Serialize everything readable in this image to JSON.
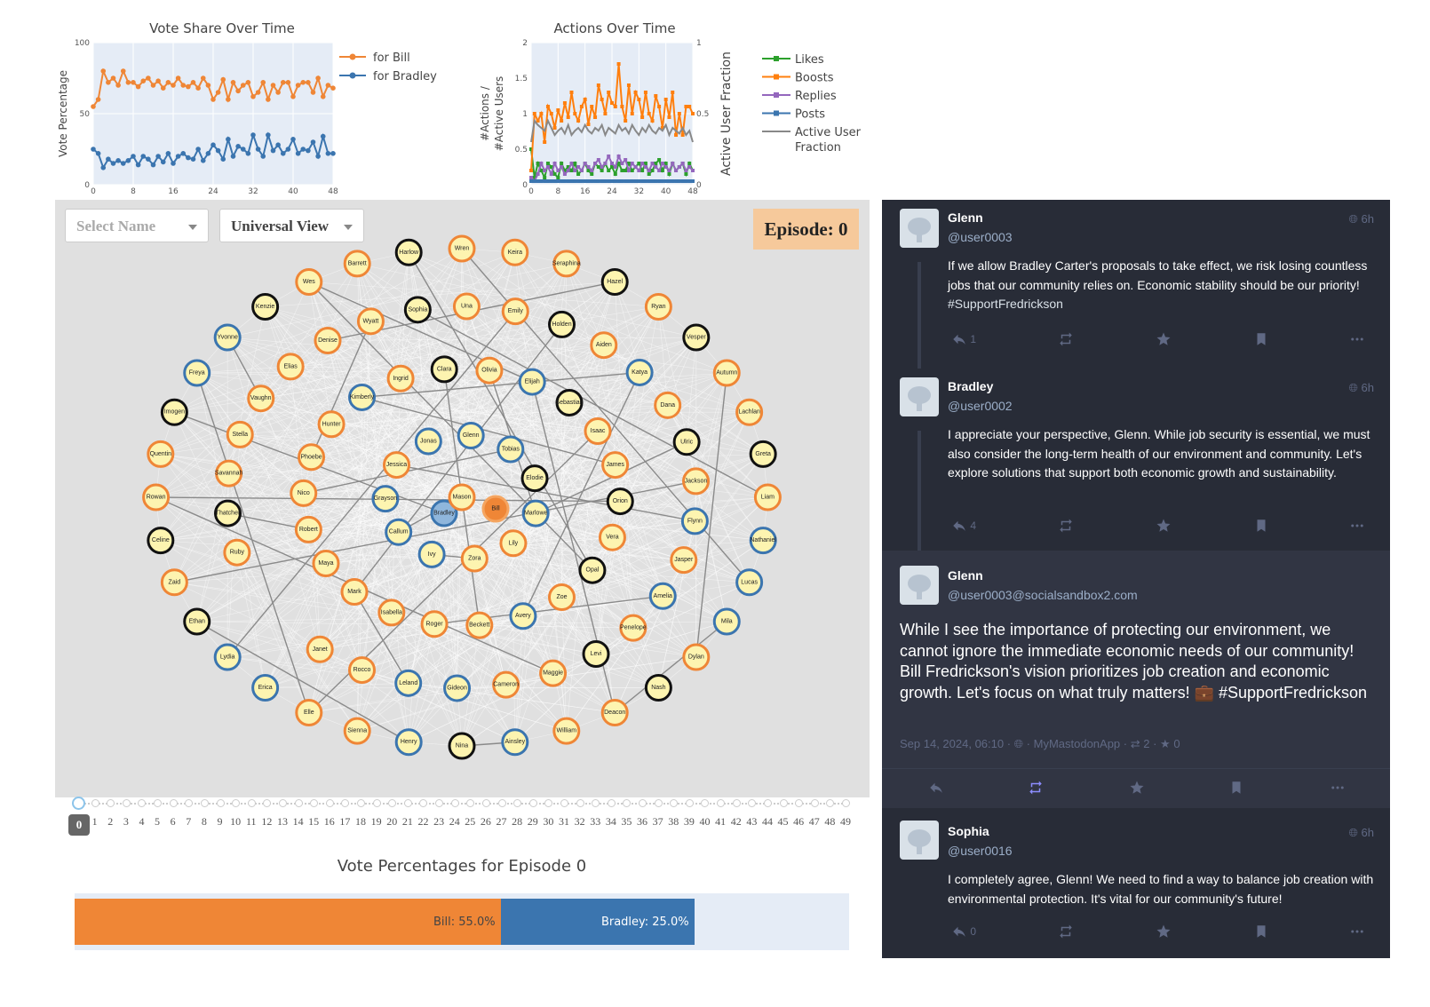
{
  "charts": {
    "vote_share": {
      "title": "Vote Share Over Time",
      "ylabel": "Vote Percentage",
      "yticks": [
        "100",
        "50",
        "0"
      ],
      "xticks": [
        "0",
        "8",
        "16",
        "24",
        "32",
        "40",
        "48"
      ],
      "legend": [
        "for Bill",
        "for Bradley"
      ]
    },
    "actions": {
      "title": "Actions Over Time",
      "ylabel_line1": "#Actions /",
      "ylabel_line2": "#Active Users",
      "y2label": "Active User Fraction",
      "yticks": [
        "2",
        "1.5",
        "1",
        "0.5",
        "0"
      ],
      "y2ticks": [
        "1",
        "0.5",
        "0"
      ],
      "xticks": [
        "0",
        "8",
        "16",
        "24",
        "32",
        "40",
        "48"
      ],
      "legend": [
        "Likes",
        "Boosts",
        "Replies",
        "Posts",
        "Active User",
        "Fraction"
      ]
    }
  },
  "chart_data": [
    {
      "type": "line",
      "title": "Vote Share Over Time",
      "ylabel": "Vote Percentage",
      "ylim": [
        0,
        100
      ],
      "xlim": [
        0,
        48
      ],
      "x": [
        0,
        1,
        2,
        3,
        4,
        5,
        6,
        7,
        8,
        9,
        10,
        11,
        12,
        13,
        14,
        15,
        16,
        17,
        18,
        19,
        20,
        21,
        22,
        23,
        24,
        25,
        26,
        27,
        28,
        29,
        30,
        31,
        32,
        33,
        34,
        35,
        36,
        37,
        38,
        39,
        40,
        41,
        42,
        43,
        44,
        45,
        46,
        47,
        48
      ],
      "series": [
        {
          "name": "for Bill",
          "color": "#ef8636",
          "values": [
            55,
            60,
            80,
            72,
            75,
            70,
            80,
            72,
            72,
            69,
            73,
            75,
            70,
            73,
            68,
            72,
            70,
            75,
            70,
            69,
            72,
            68,
            75,
            70,
            60,
            65,
            74,
            60,
            72,
            66,
            70,
            72,
            62,
            65,
            72,
            60,
            70,
            65,
            72,
            72,
            62,
            70,
            72,
            72,
            65,
            75,
            62,
            70,
            68
          ]
        },
        {
          "name": "for Bradley",
          "color": "#3b75af",
          "values": [
            25,
            22,
            12,
            18,
            15,
            17,
            15,
            17,
            20,
            14,
            20,
            18,
            14,
            20,
            16,
            22,
            15,
            20,
            22,
            19,
            18,
            25,
            17,
            22,
            28,
            24,
            18,
            32,
            20,
            27,
            25,
            22,
            35,
            25,
            20,
            35,
            24,
            28,
            22,
            25,
            32,
            22,
            25,
            24,
            30,
            20,
            34,
            22,
            22
          ]
        }
      ]
    },
    {
      "type": "line",
      "title": "Actions Over Time",
      "ylabel": "#Actions / #Active Users",
      "y2label": "Active User Fraction",
      "ylim": [
        0,
        2
      ],
      "y2lim": [
        0,
        1
      ],
      "xlim": [
        0,
        48
      ],
      "x": [
        0,
        1,
        2,
        3,
        4,
        5,
        6,
        7,
        8,
        9,
        10,
        11,
        12,
        13,
        14,
        15,
        16,
        17,
        18,
        19,
        20,
        21,
        22,
        23,
        24,
        25,
        26,
        27,
        28,
        29,
        30,
        31,
        32,
        33,
        34,
        35,
        36,
        37,
        38,
        39,
        40,
        41,
        42,
        43,
        44,
        45,
        46,
        47,
        48
      ],
      "series": [
        {
          "name": "Likes",
          "color": "#2ca02c",
          "values": [
            0.5,
            0.1,
            0.3,
            0.2,
            0.1,
            0.3,
            0.25,
            0.15,
            0.1,
            0.3,
            0.2,
            0.25,
            0.2,
            0.3,
            0.15,
            0.2,
            0.3,
            0.2,
            0.15,
            0.3,
            0.25,
            0.2,
            0.3,
            0.2,
            0.25,
            0.15,
            0.3,
            0.2,
            0.2,
            0.3,
            0.2,
            0.25,
            0.3,
            0.2,
            0.3,
            0.15,
            0.2,
            0.3,
            0.35,
            0.2,
            0.3,
            0.15,
            0.3,
            0.2,
            0.25,
            0.3,
            0.15,
            0.3,
            0.2
          ]
        },
        {
          "name": "Boosts",
          "color": "#ff7f0e",
          "values": [
            0.2,
            1.0,
            0.9,
            1.0,
            0.6,
            1.1,
            1.0,
            0.8,
            1.05,
            0.9,
            1.15,
            0.95,
            1.3,
            1.0,
            0.9,
            1.1,
            1.2,
            0.85,
            1.1,
            0.95,
            1.4,
            1.2,
            1.0,
            1.3,
            1.15,
            1.1,
            1.7,
            1.1,
            0.9,
            1.4,
            1.0,
            1.3,
            1.2,
            0.95,
            1.3,
            1.0,
            0.9,
            1.25,
            1.1,
            0.8,
            1.2,
            0.95,
            1.3,
            0.7,
            1.0,
            0.7,
            1.1,
            1.1,
            1.0
          ]
        },
        {
          "name": "Replies",
          "color": "#9467bd",
          "values": [
            0.1,
            0.05,
            0.15,
            0.3,
            0.2,
            0.25,
            0.15,
            0.3,
            0.2,
            0.25,
            0.15,
            0.2,
            0.3,
            0.2,
            0.25,
            0.2,
            0.3,
            0.25,
            0.2,
            0.3,
            0.35,
            0.25,
            0.3,
            0.4,
            0.3,
            0.25,
            0.4,
            0.3,
            0.35,
            0.2,
            0.3,
            0.25,
            0.2,
            0.3,
            0.25,
            0.2,
            0.3,
            0.25,
            0.2,
            0.3,
            0.25,
            0.2,
            0.3,
            0.2,
            0.25,
            0.3,
            0.2,
            0.25,
            0.2
          ]
        },
        {
          "name": "Posts",
          "color": "#3b75af",
          "values": [
            0.05,
            0.05,
            0.05,
            0.05,
            0.05,
            0.05,
            0.05,
            0.05,
            0.05,
            0.05,
            0.05,
            0.05,
            0.05,
            0.05,
            0.05,
            0.05,
            0.05,
            0.05,
            0.05,
            0.05,
            0.05,
            0.05,
            0.05,
            0.05,
            0.05,
            0.05,
            0.05,
            0.05,
            0.05,
            0.05,
            0.05,
            0.05,
            0.05,
            0.05,
            0.05,
            0.05,
            0.05,
            0.05,
            0.05,
            0.05,
            0.05,
            0.05,
            0.05,
            0.05,
            0.05,
            0.05,
            0.05,
            0.05,
            0.05
          ]
        },
        {
          "name": "Active User Fraction",
          "color": "#888888",
          "axis": "y2",
          "values": [
            0.3,
            0.45,
            0.42,
            0.4,
            0.38,
            0.45,
            0.4,
            0.35,
            0.38,
            0.4,
            0.36,
            0.42,
            0.35,
            0.38,
            0.4,
            0.37,
            0.42,
            0.38,
            0.36,
            0.4,
            0.38,
            0.42,
            0.35,
            0.4,
            0.38,
            0.36,
            0.42,
            0.38,
            0.4,
            0.36,
            0.42,
            0.38,
            0.35,
            0.4,
            0.37,
            0.42,
            0.38,
            0.36,
            0.4,
            0.38,
            0.42,
            0.35,
            0.4,
            0.38,
            0.36,
            0.4,
            0.35,
            0.38,
            0.3
          ]
        }
      ]
    },
    {
      "type": "bar",
      "title": "Vote Percentages for Episode 0",
      "orientation": "horizontal",
      "categories": [
        "Bill",
        "Bradley"
      ],
      "values": [
        55.0,
        25.0
      ],
      "colors": [
        "#ef8636",
        "#3b75af"
      ],
      "xlim": [
        0,
        100
      ]
    }
  ],
  "controls": {
    "name_select_placeholder": "Select Name",
    "view_select_value": "Universal View",
    "episode_label": "Episode: 0"
  },
  "slider": {
    "current": "0",
    "ticks": [
      "1",
      "2",
      "3",
      "4",
      "5",
      "6",
      "7",
      "8",
      "9",
      "10",
      "11",
      "12",
      "13",
      "14",
      "15",
      "16",
      "17",
      "18",
      "19",
      "20",
      "21",
      "22",
      "23",
      "24",
      "25",
      "26",
      "27",
      "28",
      "29",
      "30",
      "31",
      "32",
      "33",
      "34",
      "35",
      "36",
      "37",
      "38",
      "39",
      "40",
      "41",
      "42",
      "43",
      "44",
      "45",
      "46",
      "47",
      "48",
      "49"
    ]
  },
  "vote_bar": {
    "title": "Vote Percentages for Episode 0",
    "bill_label": "Bill: 55.0%",
    "bradley_label": "Bradley: 25.0%"
  },
  "network": {
    "nodes": [
      {
        "name": "Wren",
        "group": "bill"
      },
      {
        "name": "Keira",
        "group": "bill"
      },
      {
        "name": "Seraphina",
        "group": "bill"
      },
      {
        "name": "Hazel",
        "group": "neutral"
      },
      {
        "name": "Ryan",
        "group": "bill"
      },
      {
        "name": "Vesper",
        "group": "neutral"
      },
      {
        "name": "Autumn",
        "group": "bill"
      },
      {
        "name": "Lachlan",
        "group": "bill"
      },
      {
        "name": "Greta",
        "group": "neutral"
      },
      {
        "name": "Liam",
        "group": "bill"
      },
      {
        "name": "Nathaniel",
        "group": "bradley"
      },
      {
        "name": "Lucas",
        "group": "bradley"
      },
      {
        "name": "Mila",
        "group": "bradley"
      },
      {
        "name": "Dylan",
        "group": "bill"
      },
      {
        "name": "Nash",
        "group": "neutral"
      },
      {
        "name": "Deacon",
        "group": "bill"
      },
      {
        "name": "William",
        "group": "bill"
      },
      {
        "name": "Ainsley",
        "group": "bradley"
      },
      {
        "name": "Nina",
        "group": "neutral"
      },
      {
        "name": "Henry",
        "group": "bradley"
      },
      {
        "name": "Sienna",
        "group": "bill"
      },
      {
        "name": "Elle",
        "group": "bill"
      },
      {
        "name": "Erica",
        "group": "bradley"
      },
      {
        "name": "Lydia",
        "group": "bradley"
      },
      {
        "name": "Ethan",
        "group": "neutral"
      },
      {
        "name": "Zaid",
        "group": "bill"
      },
      {
        "name": "Celine",
        "group": "neutral"
      },
      {
        "name": "Rowan",
        "group": "bill"
      },
      {
        "name": "Quentin",
        "group": "bill"
      },
      {
        "name": "Imogen",
        "group": "neutral"
      },
      {
        "name": "Freya",
        "group": "bradley"
      },
      {
        "name": "Yvonne",
        "group": "bradley"
      },
      {
        "name": "Kenzie",
        "group": "neutral"
      },
      {
        "name": "Wes",
        "group": "bill"
      },
      {
        "name": "Barrett",
        "group": "bill"
      },
      {
        "name": "Harlow",
        "group": "neutral"
      },
      {
        "name": "Emily",
        "group": "bill"
      },
      {
        "name": "Holden",
        "group": "neutral"
      },
      {
        "name": "Aiden",
        "group": "bill"
      },
      {
        "name": "Katya",
        "group": "bradley"
      },
      {
        "name": "Dana",
        "group": "bill"
      },
      {
        "name": "Ulric",
        "group": "neutral"
      },
      {
        "name": "Jackson",
        "group": "bill"
      },
      {
        "name": "Flynn",
        "group": "bradley"
      },
      {
        "name": "Jasper",
        "group": "bill"
      },
      {
        "name": "Amelia",
        "group": "bradley"
      },
      {
        "name": "Penelope",
        "group": "bill"
      },
      {
        "name": "Levi",
        "group": "neutral"
      },
      {
        "name": "Maggie",
        "group": "bill"
      },
      {
        "name": "Cameron",
        "group": "bill"
      },
      {
        "name": "Gideon",
        "group": "bradley"
      },
      {
        "name": "Leland",
        "group": "bradley"
      },
      {
        "name": "Rocco",
        "group": "bill"
      },
      {
        "name": "Janet",
        "group": "bill"
      },
      {
        "name": "Bradley",
        "group": "candidate-bradley"
      },
      {
        "name": "Bill",
        "group": "candidate-bill"
      },
      {
        "name": "Ruby",
        "group": "bill"
      },
      {
        "name": "Thatcher",
        "group": "neutral"
      },
      {
        "name": "Savannah",
        "group": "bill"
      },
      {
        "name": "Stella",
        "group": "bill"
      },
      {
        "name": "Vaughn",
        "group": "bill"
      },
      {
        "name": "Elias",
        "group": "bill"
      },
      {
        "name": "Denise",
        "group": "bill"
      },
      {
        "name": "Wyatt",
        "group": "bill"
      },
      {
        "name": "Sophia",
        "group": "neutral"
      },
      {
        "name": "Una",
        "group": "bill"
      },
      {
        "name": "Elijah",
        "group": "bradley"
      },
      {
        "name": "Sebastian",
        "group": "neutral"
      },
      {
        "name": "Isaac",
        "group": "bill"
      },
      {
        "name": "James",
        "group": "bill"
      },
      {
        "name": "Orion",
        "group": "neutral"
      },
      {
        "name": "Vera",
        "group": "bill"
      },
      {
        "name": "Opal",
        "group": "neutral"
      },
      {
        "name": "Zoe",
        "group": "bill"
      },
      {
        "name": "Avery",
        "group": "bradley"
      },
      {
        "name": "Beckett",
        "group": "bill"
      },
      {
        "name": "Roger",
        "group": "bill"
      },
      {
        "name": "Isabella",
        "group": "bill"
      },
      {
        "name": "Mark",
        "group": "bill"
      },
      {
        "name": "Maya",
        "group": "bill"
      },
      {
        "name": "Robert",
        "group": "bill"
      },
      {
        "name": "Nico",
        "group": "bill"
      },
      {
        "name": "Phoebe",
        "group": "bill"
      },
      {
        "name": "Hunter",
        "group": "bill"
      },
      {
        "name": "Kimberly",
        "group": "bradley"
      },
      {
        "name": "Ingrid",
        "group": "bill"
      },
      {
        "name": "Clara",
        "group": "neutral"
      },
      {
        "name": "Olivia",
        "group": "bill"
      },
      {
        "name": "Tobias",
        "group": "bradley"
      },
      {
        "name": "Elodie",
        "group": "neutral"
      },
      {
        "name": "Marlowe",
        "group": "bradley"
      },
      {
        "name": "Lily",
        "group": "bill"
      },
      {
        "name": "Zora",
        "group": "bill"
      },
      {
        "name": "Ivy",
        "group": "bradley"
      },
      {
        "name": "Callum",
        "group": "bradley"
      },
      {
        "name": "Grayson",
        "group": "bradley"
      },
      {
        "name": "Jessica",
        "group": "bill"
      },
      {
        "name": "Jonas",
        "group": "bradley"
      },
      {
        "name": "Glenn",
        "group": "bradley"
      },
      {
        "name": "Mason",
        "group": "bill"
      }
    ]
  },
  "feed": {
    "posts": [
      {
        "name": "Glenn",
        "handle": "@user0003",
        "time": "6h",
        "text": "If we allow Bradley Carter's proposals to take effect, we risk losing countless jobs that our community relies on. Economic stability should be our priority! ",
        "tag": "#SupportFredrickson",
        "reply_count": "1"
      },
      {
        "name": "Bradley",
        "handle": "@user0002",
        "time": "6h",
        "text": "I appreciate your perspective, Glenn. While job security is essential, we must also consider the long-term health of our environment and community. Let's explore solutions that support both economic growth and sustainability.",
        "reply_count": "4"
      },
      {
        "name": "Glenn",
        "handle": "@user0003@socialsandbox2.com",
        "text": "While I see the importance of protecting our environment, we cannot ignore the immediate economic needs of our community! Bill Fredrickson's vision prioritizes job creation and economic growth. Let's focus on what truly matters! 💼 #SupportFredrickson",
        "meta_date": "Sep 14, 2024, 06:10 · ",
        "meta_app": " · MyMastodonApp · ",
        "meta_boosts": "2",
        "meta_favs": "0"
      },
      {
        "name": "Sophia",
        "handle": "@user0016",
        "time": "6h",
        "text": "I completely agree, Glenn! We need to find a way to balance job creation with environmental protection. It's vital for our community's future!",
        "reply_count": "0"
      }
    ]
  }
}
